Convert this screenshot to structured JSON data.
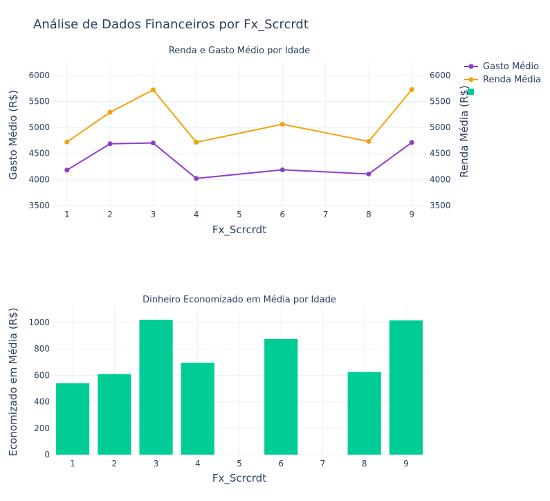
{
  "title": "Análise de Dados Financeiros por Fx_Scrcrdt",
  "chart_data": [
    {
      "type": "line",
      "title": "Renda e Gasto Médio por Idade",
      "xlabel": "Fx_Scrcrdt",
      "ylabel": "Gasto Médio (R$)",
      "y2label": "Renda Média (R$)",
      "x_ticks": [
        "1",
        "2",
        "3",
        "4",
        "5",
        "6",
        "7",
        "8",
        "9"
      ],
      "y_ticks": [
        "3500",
        "4000",
        "4500",
        "5000",
        "5500",
        "6000"
      ],
      "y2_ticks": [
        "3500",
        "4000",
        "4500",
        "5000",
        "5500",
        "6000"
      ],
      "xlim": [
        0.65,
        9.35
      ],
      "ylim": [
        3500,
        6250
      ],
      "y2lim": [
        3500,
        6250
      ],
      "grid": true,
      "legend_position": "top-right",
      "series": [
        {
          "name": "Gasto Médio",
          "color": "#8e3ccb",
          "axis": "y",
          "x": [
            1,
            2,
            3,
            4,
            6,
            8,
            9
          ],
          "values": [
            4180,
            4685,
            4700,
            4020,
            4185,
            4105,
            4710
          ]
        },
        {
          "name": "Renda Média",
          "color": "#f0a30a",
          "axis": "y2",
          "x": [
            1,
            2,
            3,
            4,
            6,
            8,
            9
          ],
          "values": [
            4720,
            5290,
            5720,
            4715,
            5060,
            4730,
            5725
          ]
        }
      ]
    },
    {
      "type": "bar",
      "title": "Dinheiro Economizado em Média por Idade",
      "xlabel": "Fx_Scrcrdt",
      "ylabel": "Economizado em Média (R$)",
      "x_ticks": [
        "1",
        "2",
        "3",
        "4",
        "5",
        "6",
        "7",
        "8",
        "9"
      ],
      "y_ticks": [
        "0",
        "200",
        "400",
        "600",
        "800",
        "1000"
      ],
      "xlim": [
        0.5,
        9.5
      ],
      "ylim": [
        0,
        1120
      ],
      "grid": true,
      "series": [
        {
          "color": "#00cc96",
          "x": [
            1,
            2,
            3,
            4,
            6,
            8,
            9
          ],
          "values": [
            540,
            610,
            1020,
            695,
            875,
            625,
            1015
          ]
        }
      ]
    }
  ]
}
